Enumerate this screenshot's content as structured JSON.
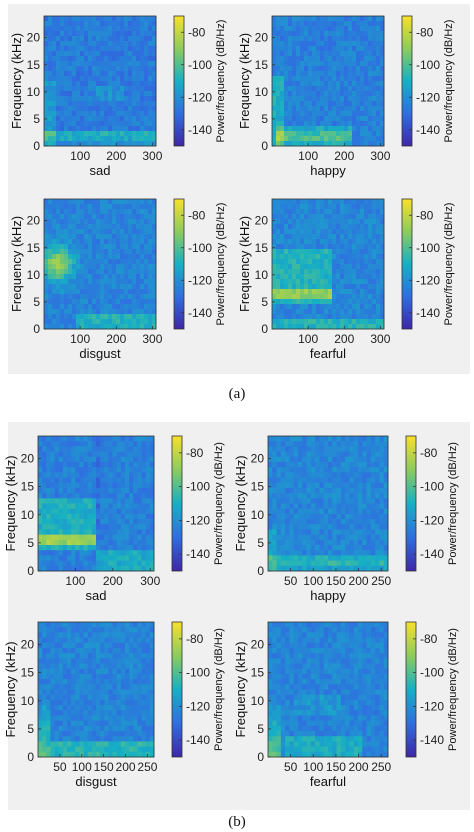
{
  "panels": [
    {
      "label": "(a)"
    },
    {
      "label": "(b)"
    }
  ],
  "colors": {
    "low": "#3a2ba3",
    "mid": "#1fa8b8",
    "high": "#f5de2a",
    "background": "#f0f0f0"
  },
  "chart_data": [
    {
      "type": "heatmap",
      "panel": "(a)",
      "xlabel": "sad",
      "ylabel": "Frequency (kHz)",
      "colorbar_label": "Power/frequency (dB/Hz)",
      "xticks": [
        100,
        200,
        300
      ],
      "yticks": [
        0,
        5,
        10,
        15,
        20
      ],
      "colorbar_ticks": [
        -80,
        -100,
        -120,
        -140
      ],
      "xlim": [
        0,
        310
      ],
      "ylim": [
        0,
        24
      ],
      "clim": [
        -150,
        -70
      ]
    },
    {
      "type": "heatmap",
      "panel": "(a)",
      "xlabel": "happy",
      "ylabel": "Frequency (kHz)",
      "colorbar_label": "Power/frequency (dB/Hz)",
      "xticks": [
        100,
        200,
        300
      ],
      "yticks": [
        0,
        5,
        10,
        15,
        20
      ],
      "colorbar_ticks": [
        -80,
        -100,
        -120,
        -140
      ],
      "xlim": [
        0,
        310
      ],
      "ylim": [
        0,
        24
      ],
      "clim": [
        -150,
        -70
      ]
    },
    {
      "type": "heatmap",
      "panel": "(a)",
      "xlabel": "disgust",
      "ylabel": "Frequency (kHz)",
      "colorbar_label": "Power/frequency (dB/Hz)",
      "xticks": [
        100,
        200,
        300
      ],
      "yticks": [
        0,
        5,
        10,
        15,
        20
      ],
      "colorbar_ticks": [
        -80,
        -100,
        -120,
        -140
      ],
      "xlim": [
        0,
        310
      ],
      "ylim": [
        0,
        24
      ],
      "clim": [
        -150,
        -70
      ]
    },
    {
      "type": "heatmap",
      "panel": "(a)",
      "xlabel": "fearful",
      "ylabel": "Frequency (kHz)",
      "colorbar_label": "Power/frequency (dB/Hz)",
      "xticks": [
        100,
        200,
        300
      ],
      "yticks": [
        0,
        5,
        10,
        15,
        20
      ],
      "colorbar_ticks": [
        -80,
        -100,
        -120,
        -140
      ],
      "xlim": [
        0,
        310
      ],
      "ylim": [
        0,
        24
      ],
      "clim": [
        -150,
        -70
      ]
    },
    {
      "type": "heatmap",
      "panel": "(b)",
      "xlabel": "sad",
      "ylabel": "Frequency (kHz)",
      "colorbar_label": "Power/frequency (dB/Hz)",
      "xticks": [
        100,
        200,
        300
      ],
      "yticks": [
        0,
        5,
        10,
        15,
        20
      ],
      "colorbar_ticks": [
        -80,
        -100,
        -120,
        -140
      ],
      "xlim": [
        0,
        310
      ],
      "ylim": [
        0,
        24
      ],
      "clim": [
        -150,
        -70
      ]
    },
    {
      "type": "heatmap",
      "panel": "(b)",
      "xlabel": "happy",
      "ylabel": "Frequency (kHz)",
      "colorbar_label": "Power/frequency (dB/Hz)",
      "xticks": [
        50,
        100,
        150,
        200,
        250
      ],
      "yticks": [
        0,
        5,
        10,
        15,
        20
      ],
      "colorbar_ticks": [
        -80,
        -100,
        -120,
        -140
      ],
      "xlim": [
        0,
        265
      ],
      "ylim": [
        0,
        24
      ],
      "clim": [
        -150,
        -70
      ]
    },
    {
      "type": "heatmap",
      "panel": "(b)",
      "xlabel": "disgust",
      "ylabel": "Frequency (kHz)",
      "colorbar_label": "Power/frequency (dB/Hz)",
      "xticks": [
        50,
        100,
        150,
        200,
        250
      ],
      "yticks": [
        0,
        5,
        10,
        15,
        20
      ],
      "colorbar_ticks": [
        -80,
        -100,
        -120,
        -140
      ],
      "xlim": [
        0,
        265
      ],
      "ylim": [
        0,
        24
      ],
      "clim": [
        -150,
        -70
      ]
    },
    {
      "type": "heatmap",
      "panel": "(b)",
      "xlabel": "fearful",
      "ylabel": "Frequency (kHz)",
      "colorbar_label": "Power/frequency (dB/Hz)",
      "xticks": [
        50,
        100,
        150,
        200,
        250
      ],
      "yticks": [
        0,
        5,
        10,
        15,
        20
      ],
      "colorbar_ticks": [
        -80,
        -100,
        -120,
        -140
      ],
      "xlim": [
        0,
        265
      ],
      "ylim": [
        0,
        24
      ],
      "clim": [
        -150,
        -70
      ]
    }
  ]
}
